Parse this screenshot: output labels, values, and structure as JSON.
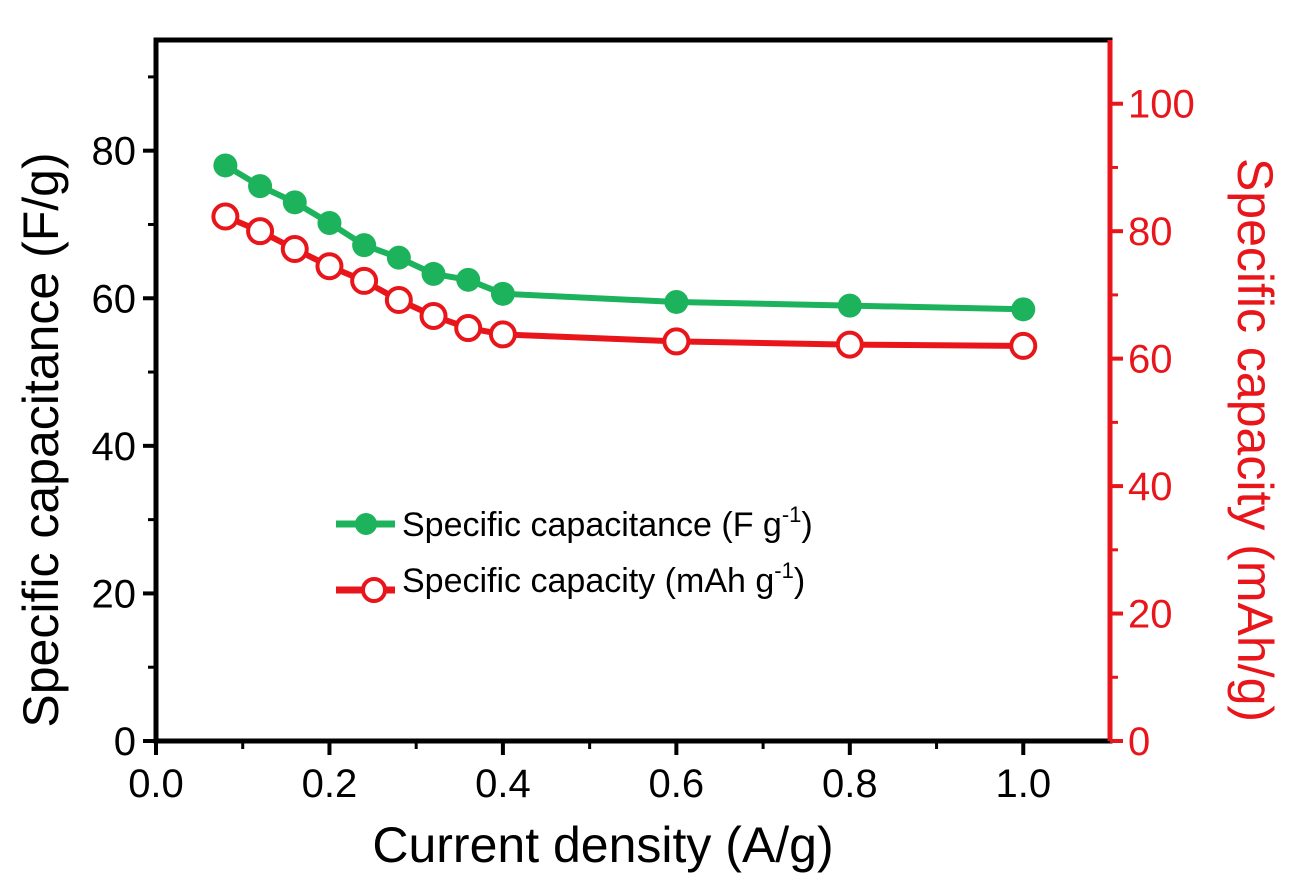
{
  "chart_data": {
    "type": "line",
    "title": "",
    "xlabel": "Current density (A/g)",
    "ylabel_left": "Specific capacitance (F/g)",
    "ylabel_right": "Specific capacity (mAh/g)",
    "xlim": [
      0.0,
      1.1
    ],
    "ylim_left": [
      0,
      95
    ],
    "ylim_right": [
      0,
      110
    ],
    "x_ticks": [
      "0.0",
      "0.2",
      "0.4",
      "0.6",
      "0.8",
      "1.0"
    ],
    "y_left_ticks": [
      "0",
      "20",
      "40",
      "60",
      "80"
    ],
    "y_right_ticks": [
      "0",
      "20",
      "40",
      "60",
      "80",
      "100"
    ],
    "grid": false,
    "legend_position": "center",
    "series": [
      {
        "name": "Specific capacitance (F g-1)",
        "legend_main": "Specific capacitance (F g",
        "legend_sup": "-1",
        "legend_close": ")",
        "axis": "left",
        "color": "#1db35c",
        "marker": "filled-circle",
        "x": [
          0.08,
          0.12,
          0.16,
          0.2,
          0.24,
          0.28,
          0.32,
          0.36,
          0.4,
          0.6,
          0.8,
          1.0
        ],
        "y": [
          78.0,
          75.2,
          73.0,
          70.2,
          67.2,
          65.5,
          63.3,
          62.5,
          60.6,
          59.5,
          59.0,
          58.5
        ]
      },
      {
        "name": "Specific capacity (mAh g-1)",
        "legend_main": "Specific capacity (mAh g",
        "legend_sup": "-1",
        "legend_close": ")",
        "axis": "right",
        "color": "#e8161b",
        "marker": "open-circle",
        "x": [
          0.08,
          0.12,
          0.16,
          0.2,
          0.24,
          0.28,
          0.32,
          0.36,
          0.4,
          0.6,
          0.8,
          1.0
        ],
        "y": [
          82.3,
          80.0,
          77.2,
          74.5,
          72.2,
          69.2,
          66.7,
          64.8,
          63.8,
          62.7,
          62.2,
          62.0
        ]
      }
    ]
  }
}
